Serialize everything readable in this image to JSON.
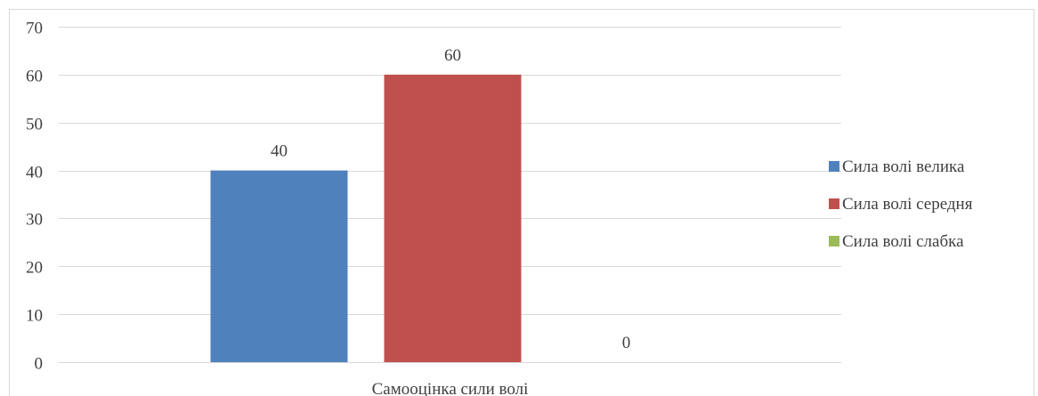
{
  "chart_data": {
    "type": "bar",
    "categories": [
      "Самооцінка сили волі"
    ],
    "series": [
      {
        "name": "Сила волі велика",
        "values": [
          40
        ],
        "color": "#4F81BD"
      },
      {
        "name": "Сила волі середня",
        "values": [
          60
        ],
        "color": "#C0504D"
      },
      {
        "name": "Сила волі слабка",
        "values": [
          0
        ],
        "color": "#9BBB59"
      }
    ],
    "ylim": [
      0,
      70
    ],
    "yticks": [
      0,
      10,
      20,
      30,
      40,
      50,
      60,
      70
    ],
    "grid": true,
    "legend_position": "right",
    "data_labels": true
  }
}
